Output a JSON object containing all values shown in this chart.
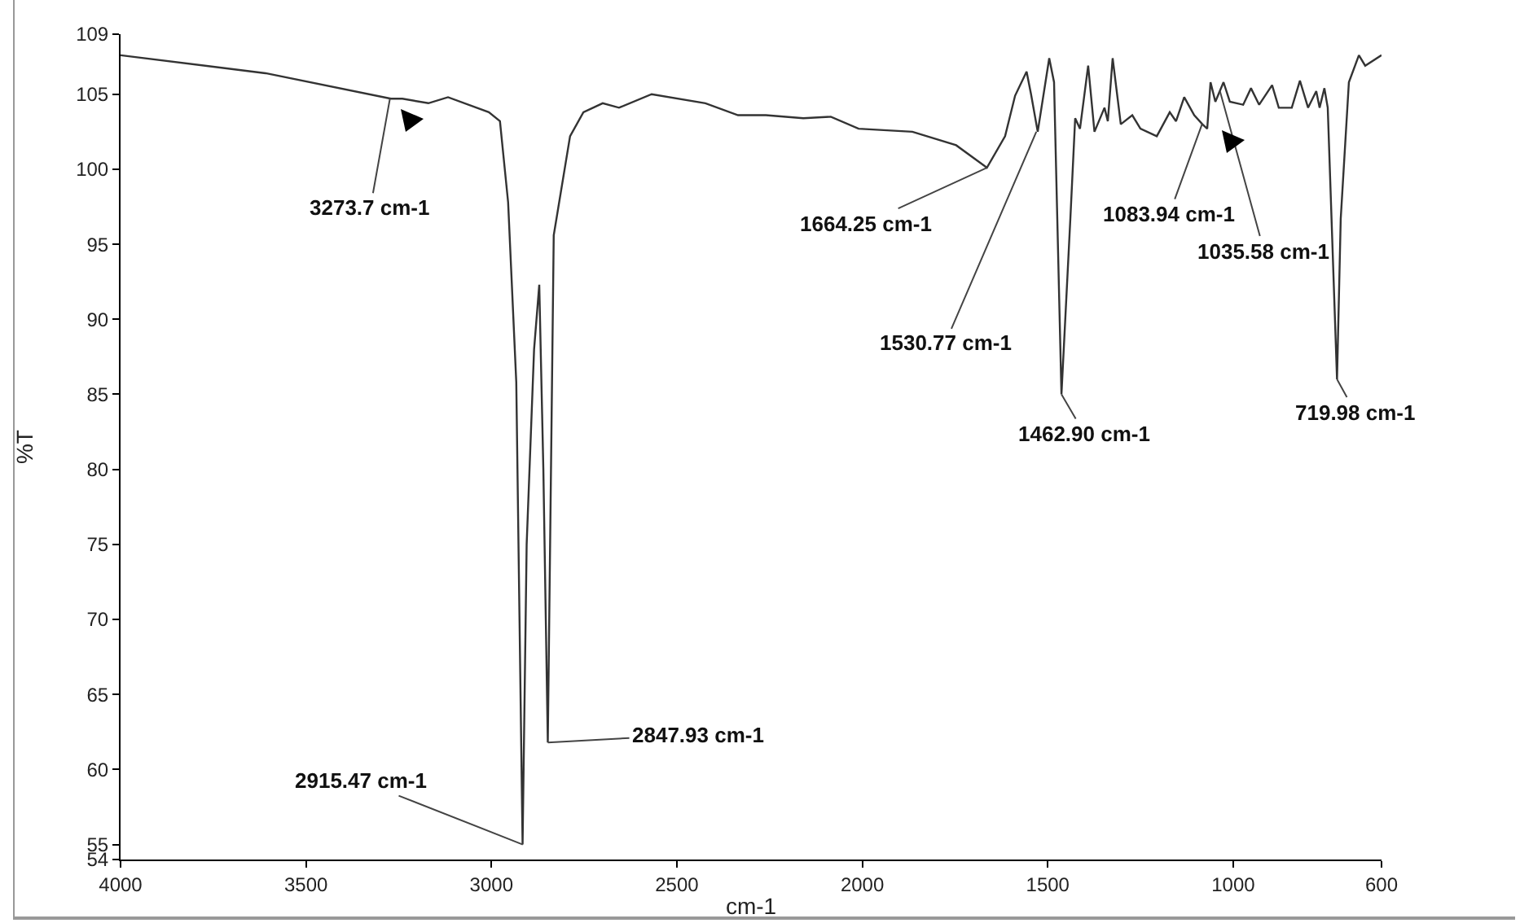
{
  "chart_data": {
    "type": "line",
    "xlabel": "cm-1",
    "ylabel": "%T",
    "xlim": [
      4000,
      600
    ],
    "xticks": [
      4000,
      3500,
      3000,
      2500,
      2000,
      1500,
      1000,
      600
    ],
    "ylim": [
      54,
      109
    ],
    "yticks": [
      54,
      55,
      60,
      65,
      70,
      75,
      80,
      85,
      90,
      95,
      100,
      105,
      109
    ],
    "grid": false,
    "marker": "none",
    "line_style": "solid",
    "series": [
      {
        "color": "#333333",
        "x": [
          4000,
          3609,
          3271,
          3240,
          3170,
          3117,
          3007,
          2977,
          2955,
          2933,
          2916,
          2905,
          2885,
          2871,
          2860,
          2848,
          2832,
          2788,
          2752,
          2700,
          2656,
          2568,
          2423,
          2335,
          2260,
          2159,
          2085,
          2010,
          1865,
          1747,
          1664,
          1615,
          1588,
          1557,
          1545,
          1527,
          1496,
          1483,
          1463,
          1439,
          1426,
          1413,
          1391,
          1374,
          1347,
          1338,
          1325,
          1303,
          1272,
          1250,
          1206,
          1171,
          1154,
          1132,
          1105,
          1083,
          1070,
          1061,
          1048,
          1026,
          1009,
          973,
          952,
          930,
          895,
          877,
          842,
          820,
          798,
          776,
          767,
          754,
          745,
          720,
          710,
          688,
          661,
          644,
          600
        ],
        "values": [
          107.6,
          106.4,
          104.7,
          104.7,
          104.4,
          104.8,
          103.8,
          103.2,
          97.8,
          85.8,
          55,
          75,
          88,
          92.3,
          80,
          61.8,
          95.6,
          102.2,
          103.8,
          104.4,
          104.1,
          105,
          104.4,
          103.6,
          103.6,
          103.4,
          103.5,
          102.7,
          102.5,
          101.6,
          100.1,
          102.2,
          104.9,
          106.5,
          105,
          102.5,
          107.4,
          105.8,
          85,
          96.7,
          103.4,
          102.7,
          106.9,
          102.5,
          104.1,
          103.2,
          107.4,
          103,
          103.6,
          102.7,
          102.2,
          103.8,
          103.2,
          104.8,
          103.6,
          103,
          102.7,
          105.8,
          104.5,
          105.8,
          104.5,
          104.3,
          105.4,
          104.3,
          105.6,
          104.1,
          104.1,
          105.9,
          104.1,
          105.2,
          104.1,
          105.4,
          104.1,
          86,
          96.7,
          105.8,
          107.6,
          106.9,
          107.6
        ]
      }
    ],
    "annotations": [
      {
        "text": "3273.7 cm-1",
        "x": 3273.7,
        "y": 104.7
      },
      {
        "text": "2915.47 cm-1",
        "x": 2915.47,
        "y": 55
      },
      {
        "text": "2847.93 cm-1",
        "x": 2847.93,
        "y": 61.8
      },
      {
        "text": "1664.25 cm-1",
        "x": 1664.25,
        "y": 100.1
      },
      {
        "text": "1530.77 cm-1",
        "x": 1530.77,
        "y": 102.5
      },
      {
        "text": "1462.90 cm-1",
        "x": 1462.9,
        "y": 85
      },
      {
        "text": "1083.94 cm-1",
        "x": 1083.94,
        "y": 103
      },
      {
        "text": "1035.58 cm-1",
        "x": 1035.58,
        "y": 105.2
      },
      {
        "text": "719.98 cm-1",
        "x": 719.98,
        "y": 86
      }
    ]
  }
}
